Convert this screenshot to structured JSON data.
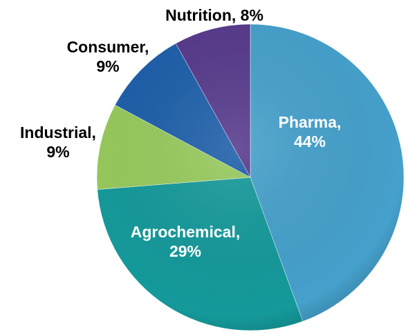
{
  "chart_data": {
    "type": "pie",
    "categories": [
      "Pharma",
      "Agrochemical",
      "Industrial",
      "Consumer",
      "Nutrition"
    ],
    "values": [
      44,
      29,
      9,
      9,
      8
    ],
    "value_labels": [
      "Pharma, 44%",
      "Agrochemical, 29%",
      "Industrial, 9%",
      "Consumer, 9%",
      "Nutrition, 8%"
    ],
    "colors": [
      "#45a0cb",
      "#15999a",
      "#96c95c",
      "#1d5fa9",
      "#573a8c"
    ]
  }
}
